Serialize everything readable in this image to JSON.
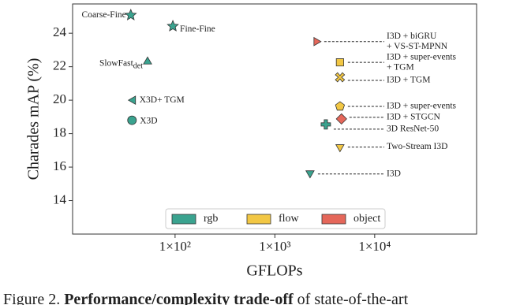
{
  "chart_data": {
    "type": "scatter",
    "x_label": "GFLOPs",
    "y_label": "Charades mAP (%)",
    "xscale": "log",
    "xlim": [
      9.4,
      105000
    ],
    "ylim": [
      12,
      25.75
    ],
    "xticks": [
      {
        "value": 100,
        "label": "1×10²"
      },
      {
        "value": 1000,
        "label": "1×10³"
      },
      {
        "value": 10000,
        "label": "1×10⁴"
      }
    ],
    "yticks": [
      14,
      16,
      18,
      20,
      22,
      24
    ],
    "legend": "lower center",
    "series": [
      {
        "name": "rgb",
        "color": "#3aa38f",
        "labels": [
          [
            "Coarse-Fine"
          ],
          [
            "Fine-Fine"
          ],
          [
            "SlowFast",
            "det"
          ],
          [
            "X3D+ TGM"
          ],
          [
            "X3D"
          ],
          [
            "3D ResNet-50"
          ],
          [
            "I3D"
          ]
        ],
        "markers": [
          "star",
          "star",
          "triangle-up",
          "triangle-left",
          "circle",
          "plus",
          "triangle-down"
        ],
        "x": [
          36,
          95,
          53,
          38,
          37,
          3240,
          2250
        ],
        "values": [
          25.08,
          24.42,
          22.3,
          20.0,
          18.8,
          18.55,
          15.64
        ]
      },
      {
        "name": "flow",
        "color": "#f2c744",
        "labels": [
          [
            "I3D + super-events",
            "+ TGM"
          ],
          [
            "I3D + TGM"
          ],
          [
            "I3D + super-events"
          ],
          [
            "Two-Stream I3D"
          ]
        ],
        "markers": [
          "square",
          "x",
          "pentagon",
          "triangle-down"
        ],
        "x": [
          4490,
          4490,
          4490,
          4490
        ],
        "values": [
          22.26,
          21.37,
          19.63,
          17.2
        ]
      },
      {
        "name": "object",
        "color": "#e5675a",
        "labels": [
          [
            "I3D + biGRU",
            "+ VS-ST-MPNN"
          ],
          [
            "I3D + STGCN"
          ]
        ],
        "markers": [
          "triangle-right",
          "diamond"
        ],
        "x": [
          2600,
          4650
        ],
        "values": [
          23.5,
          18.88
        ]
      }
    ]
  },
  "caption": {
    "prefix": "Figure 2.",
    "bold": "Performance/complexity trade-off",
    "rest": "of state-of-the-art"
  }
}
